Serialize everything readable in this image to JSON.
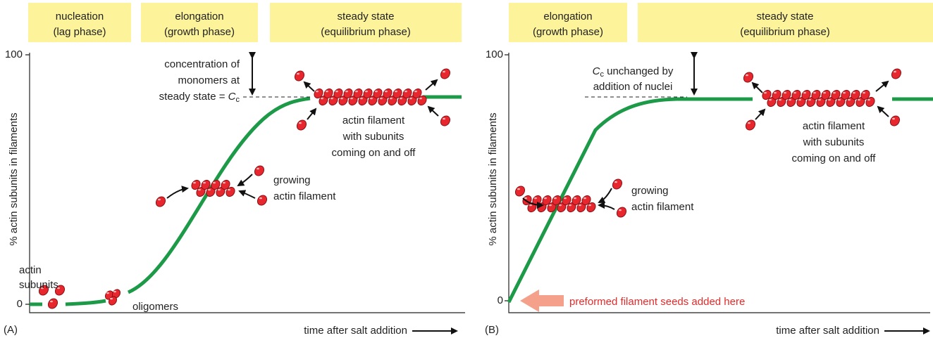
{
  "panels": [
    {
      "label": "(A)",
      "phases": [
        [
          "nucleation",
          "(lag phase)"
        ],
        [
          "elongation",
          "(growth phase)"
        ],
        [
          "steady state",
          "(equilibrium phase)"
        ]
      ],
      "y_axis_label": "% actin subunits in filaments",
      "y_tick_labels": [
        "100",
        "0"
      ],
      "x_axis_label": "time after salt addition",
      "subunits_label": [
        "actin",
        "subunits"
      ],
      "oligomers_label": "oligomers",
      "growing_label": [
        "growing",
        "actin filament"
      ],
      "steady_label": [
        "actin filament",
        "with subunits",
        "coming on and off"
      ],
      "cc_label": {
        "lines": [
          "concentration of",
          "monomers at"
        ],
        "last_line": "steady state = ",
        "symbol": "C",
        "subscript": "c"
      }
    },
    {
      "label": "(B)",
      "phases": [
        [
          "elongation",
          "(growth phase)"
        ],
        [
          "steady state",
          "(equilibrium phase)"
        ]
      ],
      "y_axis_label": "% actin subunits in filaments",
      "y_tick_labels": [
        "100",
        "0"
      ],
      "x_axis_label": "time after salt addition",
      "growing_label": [
        "growing",
        "actin filament"
      ],
      "steady_label": [
        "actin filament",
        "with subunits",
        "coming on and off"
      ],
      "cc_label": {
        "symbol": "C",
        "subscript": "c",
        "first_line_rest": " unchanged by",
        "lines": [
          "addition of nuclei"
        ]
      },
      "seeds_label": "preformed filament seeds added here"
    }
  ]
}
